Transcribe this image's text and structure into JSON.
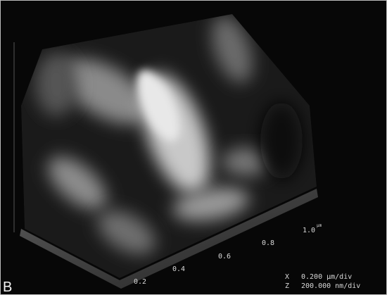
{
  "panel_label": "B",
  "x_axis": {
    "ticks": [
      "0.2",
      "0.4",
      "0.6",
      "0.8",
      "1.0"
    ],
    "unit": "µm"
  },
  "scale": {
    "x": {
      "axis": "X",
      "value": "0.200 µm/div"
    },
    "z": {
      "axis": "Z",
      "value": "200.000 nm/div"
    }
  }
}
